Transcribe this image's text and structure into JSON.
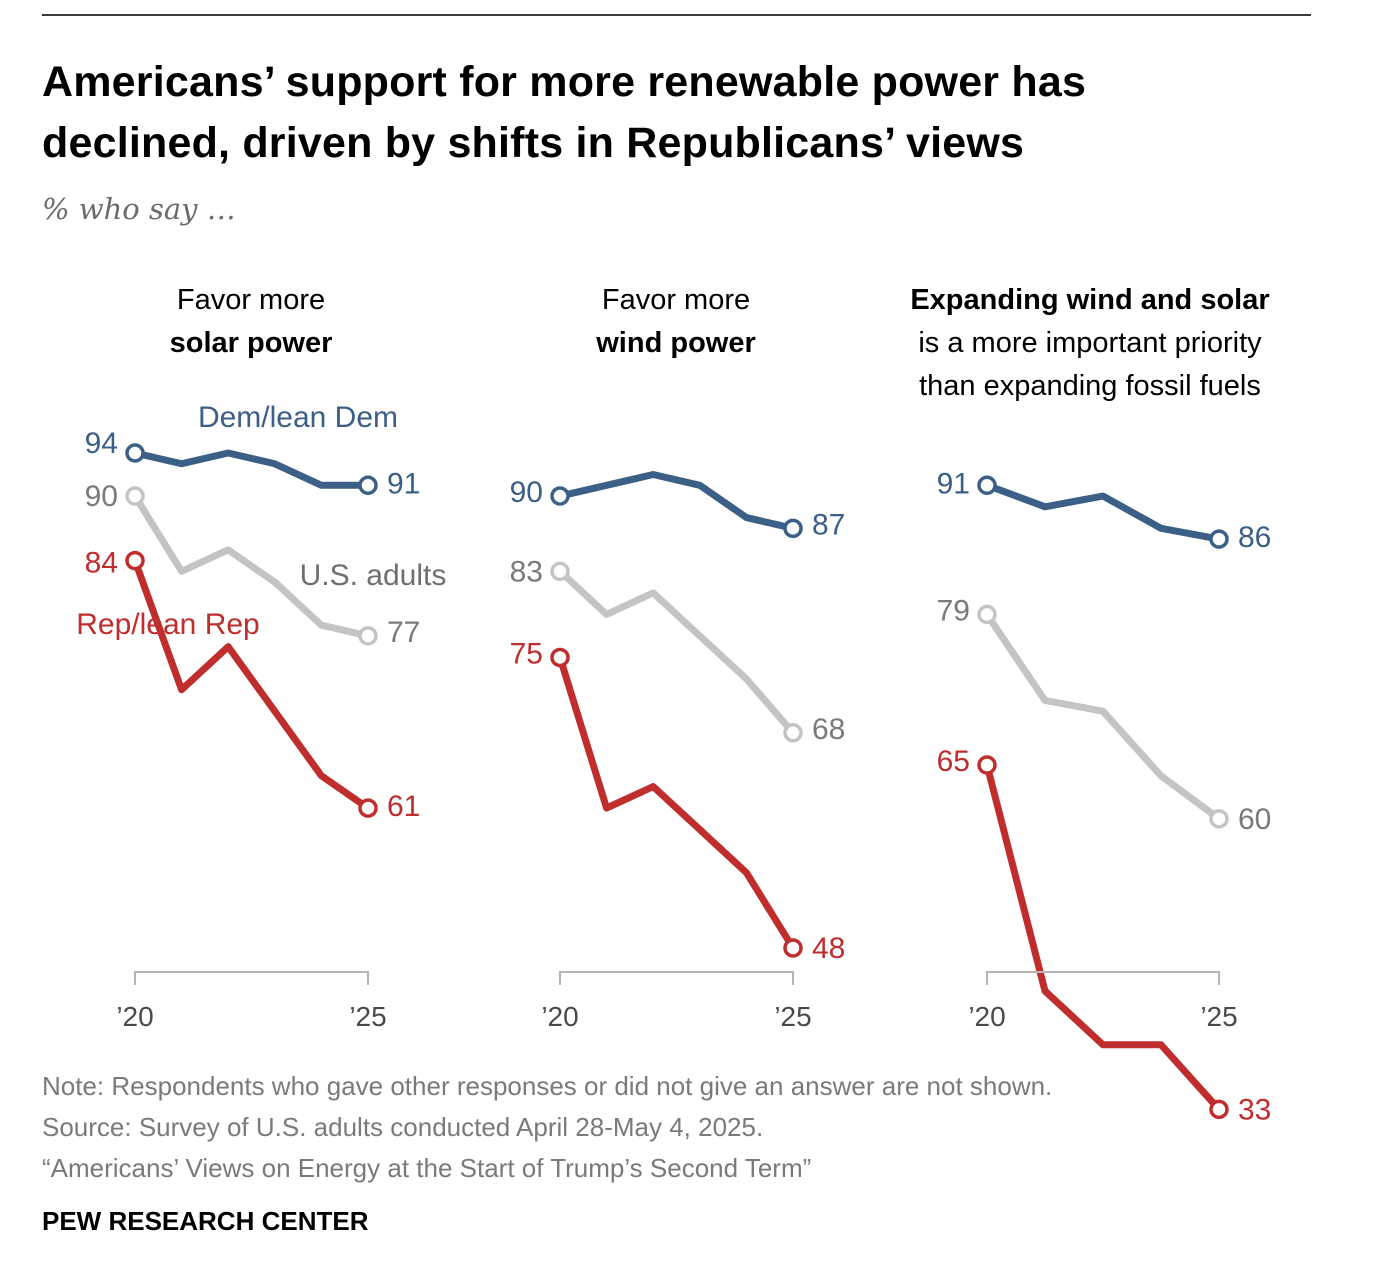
{
  "title_lines": [
    "Americans’ support for more renewable power has",
    "declined, driven by shifts in Republicans’ views"
  ],
  "subtitle": "% who say …",
  "chart_data": [
    {
      "type": "line",
      "header_parts": [
        {
          "text": "Favor more",
          "bold": false
        },
        {
          "text": "solar power",
          "bold": true
        }
      ],
      "x_tick_labels": [
        "’20",
        "’25"
      ],
      "series": [
        {
          "name": "Dem/lean Dem",
          "color": "#3b5f86",
          "values": [
            94,
            93,
            94,
            93,
            91,
            91
          ],
          "start_label": "94",
          "end_label": "91"
        },
        {
          "name": "U.S. adults",
          "color": "#c4c4c4",
          "values": [
            90,
            83,
            85,
            82,
            78,
            77
          ],
          "start_label": "90",
          "end_label": "77"
        },
        {
          "name": "Rep/lean Rep",
          "color": "#bf2d2d",
          "values": [
            84,
            72,
            76,
            70,
            64,
            61
          ],
          "start_label": "84",
          "end_label": "61"
        }
      ]
    },
    {
      "type": "line",
      "header_parts": [
        {
          "text": "Favor more",
          "bold": false
        },
        {
          "text": "wind power",
          "bold": true
        }
      ],
      "x_tick_labels": [
        "’20",
        "’25"
      ],
      "series": [
        {
          "color": "#3b5f86",
          "values": [
            90,
            91,
            92,
            91,
            88,
            87
          ],
          "start_label": "90",
          "end_label": "87"
        },
        {
          "color": "#c4c4c4",
          "values": [
            83,
            79,
            81,
            77,
            73,
            68
          ],
          "start_label": "83",
          "end_label": "68"
        },
        {
          "color": "#bf2d2d",
          "values": [
            75,
            61,
            63,
            59,
            55,
            48
          ],
          "start_label": "75",
          "end_label": "48"
        }
      ]
    },
    {
      "type": "line",
      "header_parts": [
        {
          "text": "Expanding wind and solar",
          "bold": true
        },
        {
          "text": "is a more important priority",
          "bold": false
        },
        {
          "text": "than expanding fossil fuels",
          "bold": false
        }
      ],
      "x_tick_labels": [
        "’20",
        "’25"
      ],
      "series": [
        {
          "color": "#3b5f86",
          "values": [
            91,
            89,
            90,
            87,
            86
          ],
          "start_label": "91",
          "end_label": "86"
        },
        {
          "color": "#c4c4c4",
          "values": [
            79,
            71,
            70,
            64,
            60
          ],
          "start_label": "79",
          "end_label": "60"
        },
        {
          "color": "#bf2d2d",
          "values": [
            65,
            44,
            39,
            39,
            33
          ],
          "start_label": "65",
          "end_label": "33"
        }
      ]
    }
  ],
  "note_lines": [
    "Note: Respondents who gave other responses or did not give an answer are not shown.",
    "Source: Survey of U.S. adults conducted April 28-May 4, 2025.",
    "“Americans’ Views on Energy at the Start of Trump’s Second Term”"
  ],
  "brand": "PEW RESEARCH CENTER"
}
